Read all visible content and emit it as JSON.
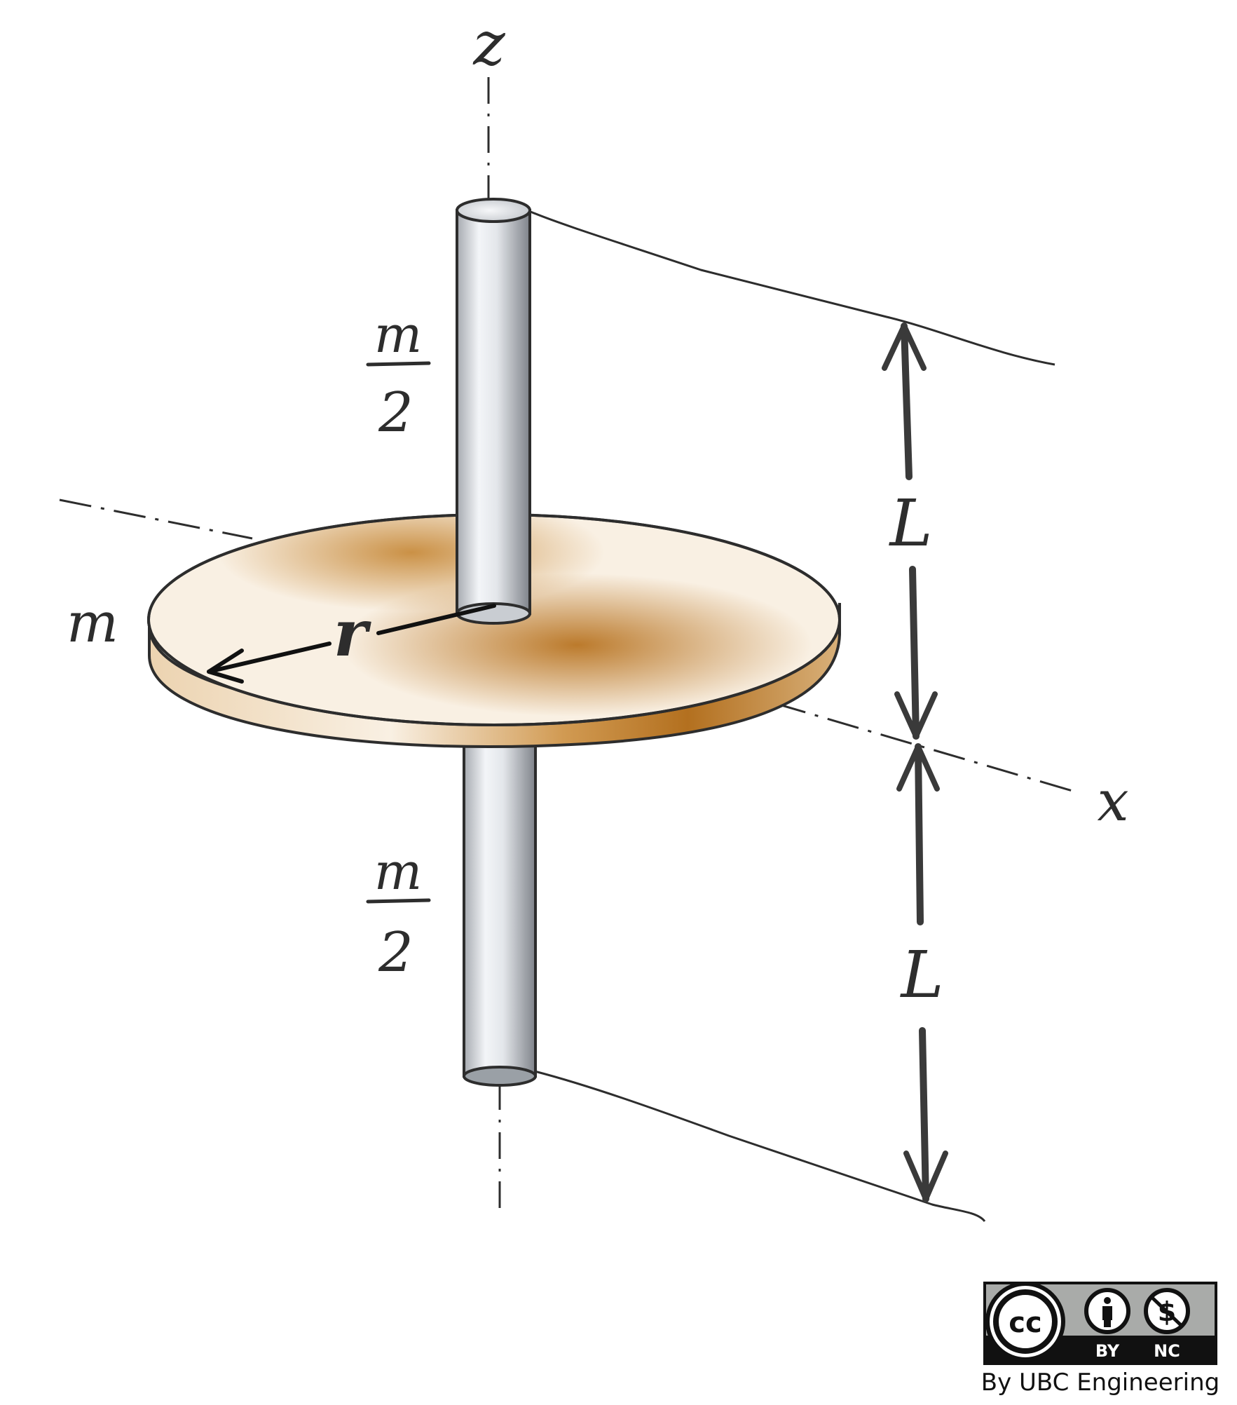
{
  "labels": {
    "z_axis": "z",
    "x_axis": "x",
    "disk_mass": "m",
    "radius": "r",
    "upper_rod_numerator": "m",
    "upper_rod_denominator": "2",
    "lower_rod_numerator": "m",
    "lower_rod_denominator": "2",
    "upper_length": "L",
    "lower_length": "L"
  },
  "license": {
    "cc": "cc",
    "by": "BY",
    "nc": "NC",
    "credit": "By UBC Engineering"
  },
  "colors": {
    "disk_light": "#f7ecdc",
    "disk_dark": "#b87422",
    "rod_light": "#f3f5f8",
    "rod_dark": "#8c9097",
    "ink": "#2d2d2d"
  }
}
